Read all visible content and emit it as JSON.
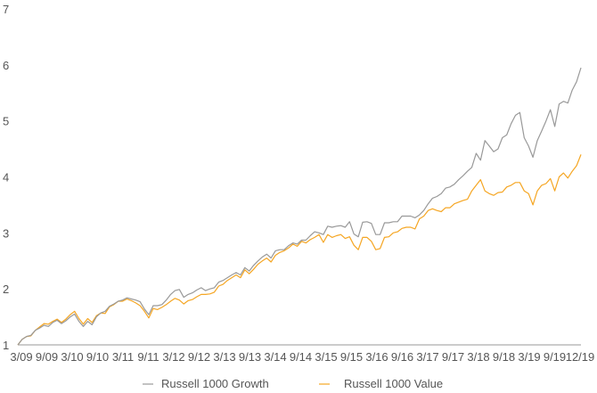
{
  "chart_data": {
    "type": "line",
    "title": "",
    "xlabel": "",
    "ylabel": "",
    "ylim": [
      1,
      7
    ],
    "yticks": [
      1,
      2,
      3,
      4,
      5,
      6,
      7
    ],
    "xlim": [
      "3/09",
      "12/19"
    ],
    "xticks": [
      "3/09",
      "9/09",
      "3/10",
      "9/10",
      "3/11",
      "9/11",
      "3/12",
      "9/12",
      "3/13",
      "9/13",
      "3/14",
      "9/14",
      "3/15",
      "9/15",
      "3/16",
      "9/16",
      "3/17",
      "9/17",
      "3/18",
      "9/18",
      "3/19",
      "9/19",
      "12/19"
    ],
    "grid": false,
    "legend": "bottom-center",
    "x": [
      "3/09",
      "4/09",
      "5/09",
      "6/09",
      "7/09",
      "8/09",
      "9/09",
      "10/09",
      "11/09",
      "12/09",
      "1/10",
      "2/10",
      "3/10",
      "4/10",
      "5/10",
      "6/10",
      "7/10",
      "8/10",
      "9/10",
      "10/10",
      "11/10",
      "12/10",
      "1/11",
      "2/11",
      "3/11",
      "4/11",
      "5/11",
      "6/11",
      "7/11",
      "8/11",
      "9/11",
      "10/11",
      "11/11",
      "12/11",
      "1/12",
      "2/12",
      "3/12",
      "4/12",
      "5/12",
      "6/12",
      "7/12",
      "8/12",
      "9/12",
      "10/12",
      "11/12",
      "12/12",
      "1/13",
      "2/13",
      "3/13",
      "4/13",
      "5/13",
      "6/13",
      "7/13",
      "8/13",
      "9/13",
      "10/13",
      "11/13",
      "12/13",
      "1/14",
      "2/14",
      "3/14",
      "4/14",
      "5/14",
      "6/14",
      "7/14",
      "8/14",
      "9/14",
      "10/14",
      "11/14",
      "12/14",
      "1/15",
      "2/15",
      "3/15",
      "4/15",
      "5/15",
      "6/15",
      "7/15",
      "8/15",
      "9/15",
      "10/15",
      "11/15",
      "12/15",
      "1/16",
      "2/16",
      "3/16",
      "4/16",
      "5/16",
      "6/16",
      "7/16",
      "8/16",
      "9/16",
      "10/16",
      "11/16",
      "12/16",
      "1/17",
      "2/17",
      "3/17",
      "4/17",
      "5/17",
      "6/17",
      "7/17",
      "8/17",
      "9/17",
      "10/17",
      "11/17",
      "12/17",
      "1/18",
      "2/18",
      "3/18",
      "4/18",
      "5/18",
      "6/18",
      "7/18",
      "8/18",
      "9/18",
      "10/18",
      "11/18",
      "12/18",
      "1/19",
      "2/19",
      "3/19",
      "4/19",
      "5/19",
      "6/19",
      "7/19",
      "8/19",
      "9/19",
      "10/19",
      "11/19",
      "12/19"
    ],
    "series": [
      {
        "name": "Russell 1000 Growth",
        "color": "#999999",
        "values": [
          1.0,
          1.1,
          1.15,
          1.17,
          1.26,
          1.3,
          1.35,
          1.33,
          1.4,
          1.44,
          1.38,
          1.43,
          1.5,
          1.55,
          1.42,
          1.33,
          1.42,
          1.36,
          1.5,
          1.57,
          1.6,
          1.69,
          1.73,
          1.78,
          1.8,
          1.84,
          1.82,
          1.8,
          1.77,
          1.64,
          1.54,
          1.7,
          1.7,
          1.72,
          1.8,
          1.9,
          1.97,
          1.99,
          1.85,
          1.9,
          1.93,
          1.98,
          2.02,
          1.97,
          2.0,
          2.02,
          2.12,
          2.15,
          2.2,
          2.25,
          2.29,
          2.25,
          2.38,
          2.32,
          2.42,
          2.5,
          2.57,
          2.62,
          2.55,
          2.68,
          2.7,
          2.7,
          2.77,
          2.82,
          2.8,
          2.87,
          2.87,
          2.95,
          3.02,
          3.0,
          2.97,
          3.12,
          3.1,
          3.12,
          3.13,
          3.1,
          3.2,
          2.98,
          2.93,
          3.19,
          3.2,
          3.17,
          2.97,
          2.97,
          3.18,
          3.18,
          3.2,
          3.2,
          3.3,
          3.3,
          3.3,
          3.27,
          3.32,
          3.4,
          3.52,
          3.62,
          3.65,
          3.7,
          3.8,
          3.82,
          3.87,
          3.95,
          4.02,
          4.1,
          4.17,
          4.42,
          4.3,
          4.65,
          4.55,
          4.45,
          4.5,
          4.7,
          4.75,
          4.95,
          5.1,
          5.15,
          4.7,
          4.55,
          4.35,
          4.65,
          4.82,
          5.0,
          5.2,
          4.9,
          5.3,
          5.35,
          5.32,
          5.55,
          5.7,
          5.95
        ]
      },
      {
        "name": "Russell 1000 Value",
        "color": "#f5a623",
        "values": [
          1.0,
          1.1,
          1.15,
          1.16,
          1.26,
          1.32,
          1.38,
          1.37,
          1.42,
          1.46,
          1.4,
          1.46,
          1.54,
          1.6,
          1.47,
          1.37,
          1.47,
          1.4,
          1.52,
          1.57,
          1.56,
          1.68,
          1.72,
          1.78,
          1.78,
          1.82,
          1.79,
          1.75,
          1.7,
          1.6,
          1.48,
          1.65,
          1.63,
          1.67,
          1.72,
          1.78,
          1.83,
          1.8,
          1.73,
          1.79,
          1.81,
          1.86,
          1.9,
          1.9,
          1.91,
          1.94,
          2.05,
          2.08,
          2.15,
          2.2,
          2.25,
          2.2,
          2.34,
          2.27,
          2.35,
          2.44,
          2.5,
          2.55,
          2.48,
          2.6,
          2.65,
          2.68,
          2.73,
          2.8,
          2.76,
          2.85,
          2.82,
          2.88,
          2.92,
          2.97,
          2.83,
          2.97,
          2.92,
          2.95,
          2.97,
          2.9,
          2.93,
          2.78,
          2.7,
          2.92,
          2.92,
          2.85,
          2.7,
          2.72,
          2.92,
          2.93,
          3.0,
          3.02,
          3.08,
          3.1,
          3.1,
          3.07,
          3.25,
          3.3,
          3.4,
          3.43,
          3.4,
          3.38,
          3.45,
          3.45,
          3.52,
          3.55,
          3.58,
          3.6,
          3.75,
          3.85,
          3.95,
          3.75,
          3.7,
          3.67,
          3.72,
          3.73,
          3.82,
          3.85,
          3.9,
          3.9,
          3.75,
          3.7,
          3.5,
          3.75,
          3.85,
          3.88,
          3.97,
          3.75,
          4.0,
          4.07,
          3.98,
          4.1,
          4.2,
          4.4
        ]
      }
    ]
  }
}
